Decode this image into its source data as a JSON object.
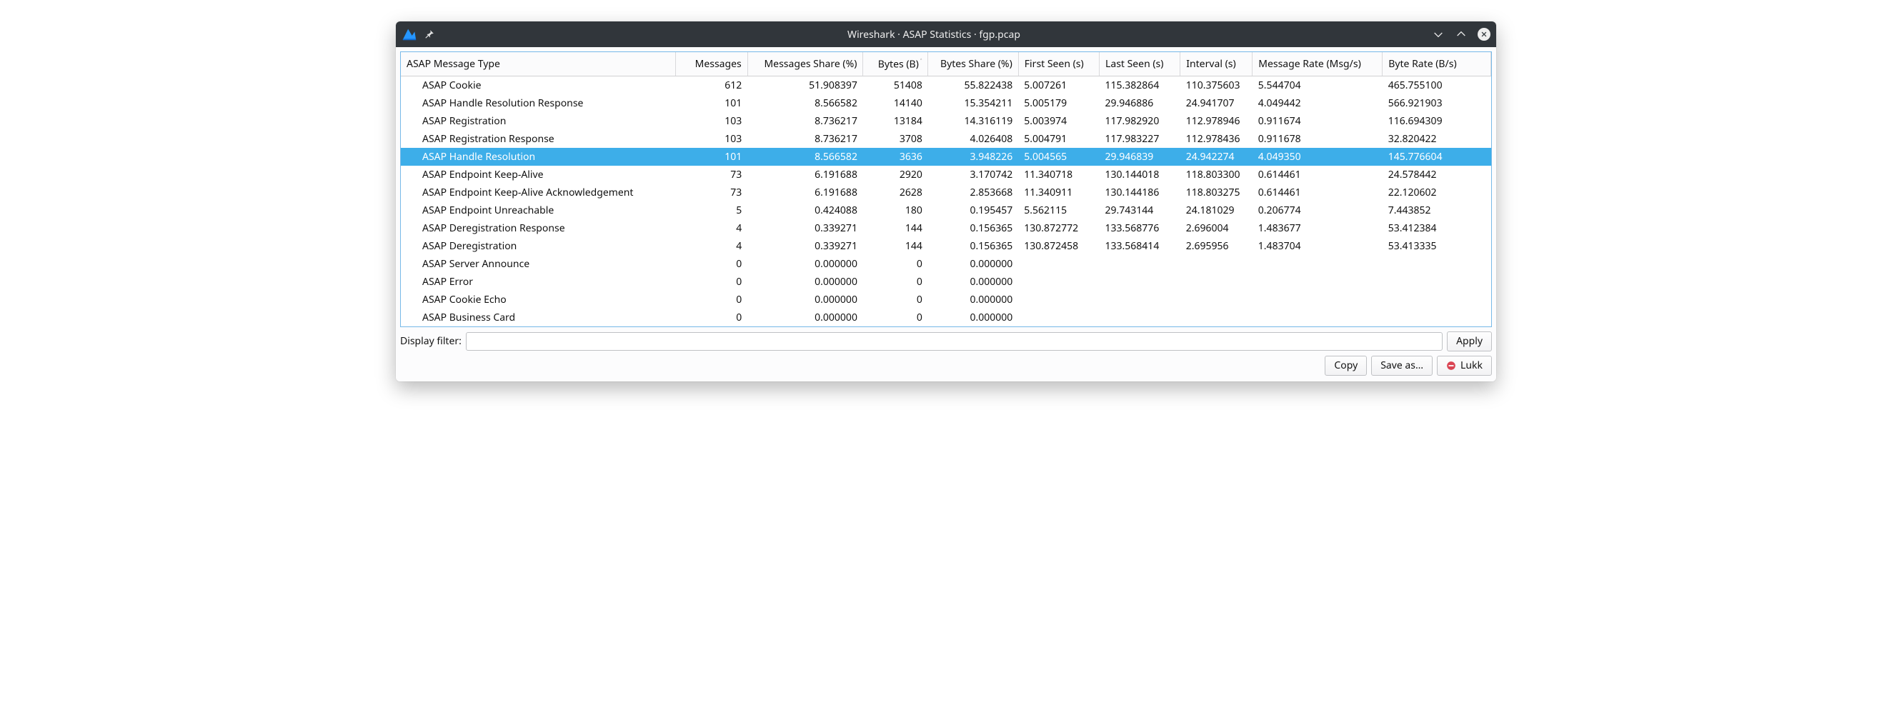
{
  "window": {
    "title": "Wireshark · ASAP Statistics · fgp.pcap"
  },
  "table": {
    "columns": [
      "ASAP Message Type",
      "Messages",
      "Messages Share (%)",
      "Bytes (B)",
      "Bytes Share (%)",
      "First Seen (s)",
      "Last Seen (s)",
      "Interval (s)",
      "Message Rate (Msg/s)",
      "Byte Rate (B/s)"
    ],
    "sort_column_index": 3,
    "sort_ascending": true,
    "selected_row_index": 4,
    "rows": [
      {
        "type": "ASAP Cookie",
        "messages": "612",
        "msg_share": "51.908397",
        "bytes": "51408",
        "bytes_share": "55.822438",
        "first": "5.007261",
        "last": "115.382864",
        "interval": "110.375603",
        "msg_rate": "5.544704",
        "byte_rate": "465.755100"
      },
      {
        "type": "ASAP Handle Resolution Response",
        "messages": "101",
        "msg_share": "8.566582",
        "bytes": "14140",
        "bytes_share": "15.354211",
        "first": "5.005179",
        "last": "29.946886",
        "interval": "24.941707",
        "msg_rate": "4.049442",
        "byte_rate": "566.921903"
      },
      {
        "type": "ASAP Registration",
        "messages": "103",
        "msg_share": "8.736217",
        "bytes": "13184",
        "bytes_share": "14.316119",
        "first": "5.003974",
        "last": "117.982920",
        "interval": "112.978946",
        "msg_rate": "0.911674",
        "byte_rate": "116.694309"
      },
      {
        "type": "ASAP Registration Response",
        "messages": "103",
        "msg_share": "8.736217",
        "bytes": "3708",
        "bytes_share": "4.026408",
        "first": "5.004791",
        "last": "117.983227",
        "interval": "112.978436",
        "msg_rate": "0.911678",
        "byte_rate": "32.820422"
      },
      {
        "type": "ASAP Handle Resolution",
        "messages": "101",
        "msg_share": "8.566582",
        "bytes": "3636",
        "bytes_share": "3.948226",
        "first": "5.004565",
        "last": "29.946839",
        "interval": "24.942274",
        "msg_rate": "4.049350",
        "byte_rate": "145.776604"
      },
      {
        "type": "ASAP Endpoint Keep-Alive",
        "messages": "73",
        "msg_share": "6.191688",
        "bytes": "2920",
        "bytes_share": "3.170742",
        "first": "11.340718",
        "last": "130.144018",
        "interval": "118.803300",
        "msg_rate": "0.614461",
        "byte_rate": "24.578442"
      },
      {
        "type": "ASAP Endpoint Keep-Alive Acknowledgement",
        "messages": "73",
        "msg_share": "6.191688",
        "bytes": "2628",
        "bytes_share": "2.853668",
        "first": "11.340911",
        "last": "130.144186",
        "interval": "118.803275",
        "msg_rate": "0.614461",
        "byte_rate": "22.120602"
      },
      {
        "type": "ASAP Endpoint Unreachable",
        "messages": "5",
        "msg_share": "0.424088",
        "bytes": "180",
        "bytes_share": "0.195457",
        "first": "5.562115",
        "last": "29.743144",
        "interval": "24.181029",
        "msg_rate": "0.206774",
        "byte_rate": "7.443852"
      },
      {
        "type": "ASAP Deregistration Response",
        "messages": "4",
        "msg_share": "0.339271",
        "bytes": "144",
        "bytes_share": "0.156365",
        "first": "130.872772",
        "last": "133.568776",
        "interval": "2.696004",
        "msg_rate": "1.483677",
        "byte_rate": "53.412384"
      },
      {
        "type": "ASAP Deregistration",
        "messages": "4",
        "msg_share": "0.339271",
        "bytes": "144",
        "bytes_share": "0.156365",
        "first": "130.872458",
        "last": "133.568414",
        "interval": "2.695956",
        "msg_rate": "1.483704",
        "byte_rate": "53.413335"
      },
      {
        "type": "ASAP Server Announce",
        "messages": "0",
        "msg_share": "0.000000",
        "bytes": "0",
        "bytes_share": "0.000000",
        "first": "",
        "last": "",
        "interval": "",
        "msg_rate": "",
        "byte_rate": ""
      },
      {
        "type": "ASAP Error",
        "messages": "0",
        "msg_share": "0.000000",
        "bytes": "0",
        "bytes_share": "0.000000",
        "first": "",
        "last": "",
        "interval": "",
        "msg_rate": "",
        "byte_rate": ""
      },
      {
        "type": "ASAP Cookie Echo",
        "messages": "0",
        "msg_share": "0.000000",
        "bytes": "0",
        "bytes_share": "0.000000",
        "first": "",
        "last": "",
        "interval": "",
        "msg_rate": "",
        "byte_rate": ""
      },
      {
        "type": "ASAP Business Card",
        "messages": "0",
        "msg_share": "0.000000",
        "bytes": "0",
        "bytes_share": "0.000000",
        "first": "",
        "last": "",
        "interval": "",
        "msg_rate": "",
        "byte_rate": ""
      }
    ]
  },
  "filter": {
    "label": "Display filter:",
    "value": "",
    "apply_label": "Apply"
  },
  "footer": {
    "copy_label": "Copy",
    "save_as_label": "Save as…",
    "close_label": "Lukk"
  },
  "colors": {
    "titlebar_bg": "#31363b",
    "selection_bg": "#3daee9",
    "tablewrap_border": "#77b9e8",
    "header_border": "#d9d9dc",
    "btn_border": "#bfc1c4"
  }
}
